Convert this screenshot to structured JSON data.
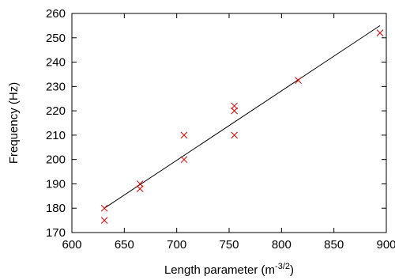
{
  "chart_data": {
    "type": "scatter",
    "title": "",
    "xlabel": "Length parameter (m",
    "xlabel_superscript": "-3/2",
    "xlabel_suffix": ")",
    "ylabel": "Frequency (Hz)",
    "xlim": [
      600,
      900
    ],
    "ylim": [
      170,
      260
    ],
    "xticks": [
      600,
      650,
      700,
      750,
      800,
      850,
      900
    ],
    "yticks": [
      170,
      180,
      190,
      200,
      210,
      220,
      230,
      240,
      250,
      260
    ],
    "grid": false,
    "legend": "none",
    "series": [
      {
        "marker": "x",
        "color": "#e00000",
        "points": [
          {
            "x": 631,
            "y": 180
          },
          {
            "x": 631,
            "y": 175
          },
          {
            "x": 665,
            "y": 190
          },
          {
            "x": 665,
            "y": 188
          },
          {
            "x": 707,
            "y": 210
          },
          {
            "x": 707,
            "y": 200
          },
          {
            "x": 755,
            "y": 222
          },
          {
            "x": 755,
            "y": 220
          },
          {
            "x": 755,
            "y": 210
          },
          {
            "x": 816,
            "y": 232.5
          },
          {
            "x": 894,
            "y": 252
          }
        ]
      }
    ],
    "fit_line": {
      "color": "#000000",
      "points": [
        {
          "x": 631,
          "y": 180
        },
        {
          "x": 894,
          "y": 255
        }
      ]
    }
  }
}
